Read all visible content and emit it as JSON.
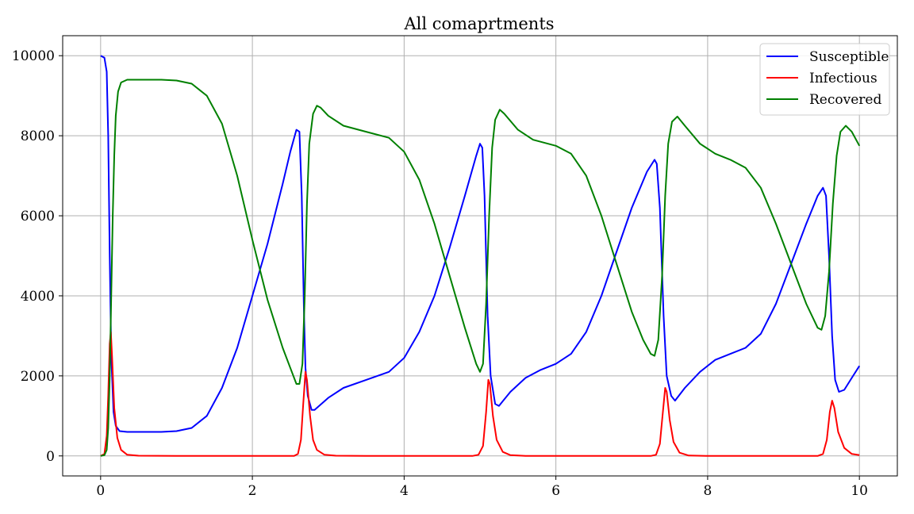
{
  "chart_data": {
    "type": "line",
    "title": "All comaprtments",
    "xlabel": "",
    "ylabel": "",
    "xlim": [
      -0.5,
      10.5
    ],
    "ylim": [
      -500,
      10500
    ],
    "xticks": [
      0,
      2,
      4,
      6,
      8,
      10
    ],
    "yticks": [
      0,
      2000,
      4000,
      6000,
      8000,
      10000
    ],
    "grid": true,
    "legend_position": "top-right",
    "series": [
      {
        "name": "Susceptible",
        "color": "#0000ff",
        "points": [
          [
            0,
            10000
          ],
          [
            0.05,
            9950
          ],
          [
            0.08,
            9600
          ],
          [
            0.1,
            8000
          ],
          [
            0.12,
            5000
          ],
          [
            0.14,
            2500
          ],
          [
            0.17,
            1100
          ],
          [
            0.2,
            750
          ],
          [
            0.25,
            620
          ],
          [
            0.35,
            600
          ],
          [
            0.5,
            600
          ],
          [
            0.8,
            600
          ],
          [
            1.0,
            620
          ],
          [
            1.2,
            700
          ],
          [
            1.4,
            1000
          ],
          [
            1.6,
            1700
          ],
          [
            1.8,
            2700
          ],
          [
            2.0,
            4000
          ],
          [
            2.2,
            5300
          ],
          [
            2.4,
            6800
          ],
          [
            2.5,
            7600
          ],
          [
            2.58,
            8150
          ],
          [
            2.62,
            8100
          ],
          [
            2.65,
            6500
          ],
          [
            2.68,
            3600
          ],
          [
            2.7,
            2200
          ],
          [
            2.73,
            1500
          ],
          [
            2.78,
            1150
          ],
          [
            2.82,
            1150
          ],
          [
            3.0,
            1450
          ],
          [
            3.2,
            1700
          ],
          [
            3.5,
            1900
          ],
          [
            3.8,
            2100
          ],
          [
            4.0,
            2450
          ],
          [
            4.2,
            3100
          ],
          [
            4.4,
            4000
          ],
          [
            4.6,
            5200
          ],
          [
            4.8,
            6500
          ],
          [
            4.95,
            7500
          ],
          [
            5.0,
            7800
          ],
          [
            5.03,
            7700
          ],
          [
            5.06,
            6500
          ],
          [
            5.1,
            3500
          ],
          [
            5.14,
            2000
          ],
          [
            5.2,
            1300
          ],
          [
            5.25,
            1250
          ],
          [
            5.4,
            1600
          ],
          [
            5.6,
            1950
          ],
          [
            5.8,
            2150
          ],
          [
            6.0,
            2300
          ],
          [
            6.2,
            2550
          ],
          [
            6.4,
            3100
          ],
          [
            6.6,
            4000
          ],
          [
            6.8,
            5100
          ],
          [
            7.0,
            6200
          ],
          [
            7.2,
            7100
          ],
          [
            7.3,
            7400
          ],
          [
            7.33,
            7300
          ],
          [
            7.37,
            6200
          ],
          [
            7.42,
            3500
          ],
          [
            7.46,
            2000
          ],
          [
            7.52,
            1500
          ],
          [
            7.57,
            1380
          ],
          [
            7.7,
            1700
          ],
          [
            7.9,
            2100
          ],
          [
            8.1,
            2400
          ],
          [
            8.3,
            2550
          ],
          [
            8.5,
            2700
          ],
          [
            8.7,
            3050
          ],
          [
            8.9,
            3800
          ],
          [
            9.1,
            4800
          ],
          [
            9.3,
            5800
          ],
          [
            9.45,
            6500
          ],
          [
            9.52,
            6700
          ],
          [
            9.56,
            6500
          ],
          [
            9.6,
            5000
          ],
          [
            9.64,
            3000
          ],
          [
            9.68,
            1900
          ],
          [
            9.73,
            1600
          ],
          [
            9.8,
            1650
          ],
          [
            9.9,
            1950
          ],
          [
            10.0,
            2250
          ]
        ]
      },
      {
        "name": "Infectious",
        "color": "#ff0000",
        "points": [
          [
            0,
            0
          ],
          [
            0.05,
            50
          ],
          [
            0.08,
            500
          ],
          [
            0.1,
            1500
          ],
          [
            0.12,
            2800
          ],
          [
            0.135,
            3100
          ],
          [
            0.15,
            2500
          ],
          [
            0.18,
            1200
          ],
          [
            0.22,
            450
          ],
          [
            0.27,
            150
          ],
          [
            0.35,
            30
          ],
          [
            0.5,
            5
          ],
          [
            1.0,
            0
          ],
          [
            2.0,
            0
          ],
          [
            2.55,
            0
          ],
          [
            2.6,
            50
          ],
          [
            2.64,
            400
          ],
          [
            2.67,
            1300
          ],
          [
            2.7,
            2100
          ],
          [
            2.72,
            1900
          ],
          [
            2.76,
            1000
          ],
          [
            2.8,
            400
          ],
          [
            2.85,
            150
          ],
          [
            2.95,
            30
          ],
          [
            3.1,
            5
          ],
          [
            3.5,
            0
          ],
          [
            4.9,
            0
          ],
          [
            4.98,
            30
          ],
          [
            5.04,
            250
          ],
          [
            5.08,
            1100
          ],
          [
            5.11,
            1900
          ],
          [
            5.13,
            1800
          ],
          [
            5.17,
            1000
          ],
          [
            5.22,
            400
          ],
          [
            5.3,
            100
          ],
          [
            5.4,
            20
          ],
          [
            5.6,
            0
          ],
          [
            7.25,
            0
          ],
          [
            7.32,
            30
          ],
          [
            7.37,
            300
          ],
          [
            7.41,
            1100
          ],
          [
            7.44,
            1700
          ],
          [
            7.46,
            1600
          ],
          [
            7.5,
            900
          ],
          [
            7.55,
            350
          ],
          [
            7.63,
            80
          ],
          [
            7.75,
            10
          ],
          [
            8.0,
            0
          ],
          [
            9.45,
            0
          ],
          [
            9.52,
            50
          ],
          [
            9.57,
            400
          ],
          [
            9.61,
            1100
          ],
          [
            9.64,
            1380
          ],
          [
            9.67,
            1200
          ],
          [
            9.72,
            600
          ],
          [
            9.8,
            200
          ],
          [
            9.9,
            50
          ],
          [
            10.0,
            20
          ]
        ]
      },
      {
        "name": "Recovered",
        "color": "#008000",
        "points": [
          [
            0,
            0
          ],
          [
            0.05,
            20
          ],
          [
            0.08,
            150
          ],
          [
            0.1,
            700
          ],
          [
            0.12,
            2000
          ],
          [
            0.14,
            4000
          ],
          [
            0.16,
            6000
          ],
          [
            0.18,
            7500
          ],
          [
            0.2,
            8500
          ],
          [
            0.23,
            9100
          ],
          [
            0.27,
            9330
          ],
          [
            0.35,
            9400
          ],
          [
            0.5,
            9400
          ],
          [
            0.8,
            9400
          ],
          [
            1.0,
            9380
          ],
          [
            1.2,
            9300
          ],
          [
            1.4,
            9000
          ],
          [
            1.6,
            8300
          ],
          [
            1.8,
            7000
          ],
          [
            2.0,
            5400
          ],
          [
            2.2,
            3900
          ],
          [
            2.4,
            2700
          ],
          [
            2.5,
            2200
          ],
          [
            2.58,
            1800
          ],
          [
            2.62,
            1800
          ],
          [
            2.66,
            2300
          ],
          [
            2.69,
            4000
          ],
          [
            2.72,
            6300
          ],
          [
            2.75,
            7800
          ],
          [
            2.8,
            8550
          ],
          [
            2.85,
            8750
          ],
          [
            2.9,
            8700
          ],
          [
            3.0,
            8500
          ],
          [
            3.2,
            8250
          ],
          [
            3.5,
            8100
          ],
          [
            3.8,
            7950
          ],
          [
            4.0,
            7600
          ],
          [
            4.2,
            6900
          ],
          [
            4.4,
            5800
          ],
          [
            4.6,
            4500
          ],
          [
            4.8,
            3200
          ],
          [
            4.95,
            2300
          ],
          [
            5.0,
            2100
          ],
          [
            5.04,
            2300
          ],
          [
            5.08,
            3800
          ],
          [
            5.12,
            6000
          ],
          [
            5.16,
            7700
          ],
          [
            5.2,
            8400
          ],
          [
            5.26,
            8650
          ],
          [
            5.32,
            8550
          ],
          [
            5.5,
            8150
          ],
          [
            5.7,
            7900
          ],
          [
            6.0,
            7750
          ],
          [
            6.2,
            7550
          ],
          [
            6.4,
            7000
          ],
          [
            6.6,
            6000
          ],
          [
            6.8,
            4800
          ],
          [
            7.0,
            3600
          ],
          [
            7.15,
            2900
          ],
          [
            7.25,
            2550
          ],
          [
            7.3,
            2500
          ],
          [
            7.35,
            2900
          ],
          [
            7.4,
            4500
          ],
          [
            7.44,
            6500
          ],
          [
            7.48,
            7800
          ],
          [
            7.53,
            8350
          ],
          [
            7.6,
            8480
          ],
          [
            7.7,
            8250
          ],
          [
            7.9,
            7800
          ],
          [
            8.1,
            7550
          ],
          [
            8.3,
            7400
          ],
          [
            8.5,
            7200
          ],
          [
            8.7,
            6700
          ],
          [
            8.9,
            5800
          ],
          [
            9.1,
            4800
          ],
          [
            9.3,
            3800
          ],
          [
            9.45,
            3200
          ],
          [
            9.5,
            3150
          ],
          [
            9.55,
            3500
          ],
          [
            9.6,
            4600
          ],
          [
            9.65,
            6300
          ],
          [
            9.7,
            7500
          ],
          [
            9.75,
            8100
          ],
          [
            9.82,
            8250
          ],
          [
            9.9,
            8100
          ],
          [
            10.0,
            7750
          ]
        ]
      }
    ]
  }
}
